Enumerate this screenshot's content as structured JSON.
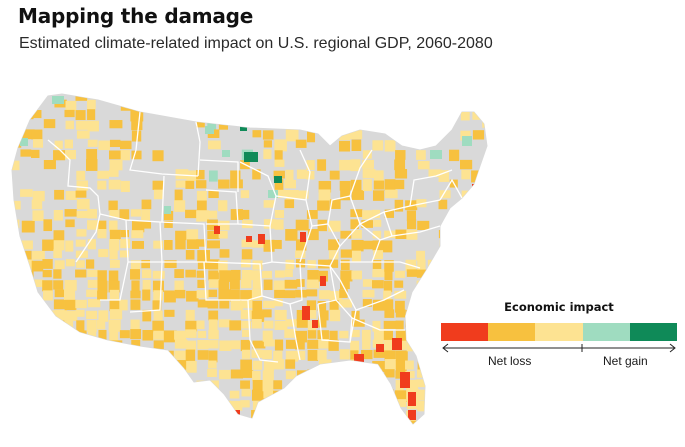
{
  "header": {
    "title": "Mapping the damage",
    "subtitle": "Estimated climate-related impact on U.S. regional GDP, 2060-2080"
  },
  "legend": {
    "title": "Economic impact",
    "net_loss_label": "Net loss",
    "net_gain_label": "Net gain",
    "scale": [
      {
        "class": "severe-loss",
        "color": "#f03c1d"
      },
      {
        "class": "loss",
        "color": "#f7c13f"
      },
      {
        "class": "slight-loss",
        "color": "#fde392"
      },
      {
        "class": "slight-gain",
        "color": "#9fdcc0"
      },
      {
        "class": "gain",
        "color": "#0f8a58"
      }
    ],
    "no_data_color": "#d9d9d9"
  },
  "colors": {
    "land": "#d9d9d9",
    "border": "#ffffff",
    "severe_loss": "#f03c1d",
    "loss": "#f7c13f",
    "slight_loss": "#fde392",
    "slight_gain": "#9fdcc0",
    "gain": "#0f8a58"
  }
}
